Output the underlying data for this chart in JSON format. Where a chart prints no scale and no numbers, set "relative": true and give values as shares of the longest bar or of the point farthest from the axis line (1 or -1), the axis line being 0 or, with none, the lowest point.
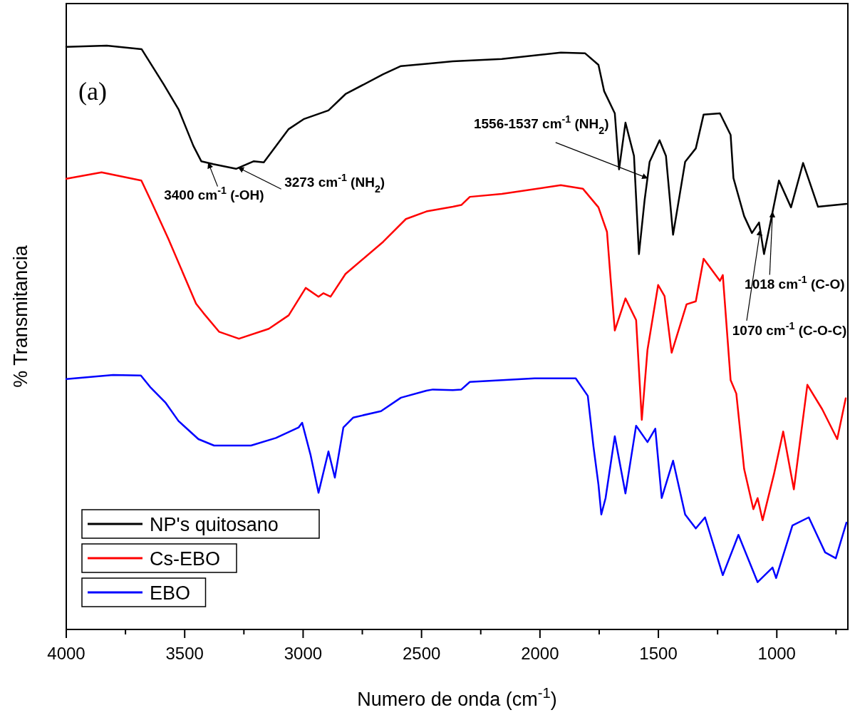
{
  "chart_data": {
    "type": "line",
    "relative": true,
    "xlabel": "Numero de onda (cm$^{-1}$)",
    "ylabel": "% Transmitancia",
    "xlim": [
      4000,
      700
    ],
    "xticks": [
      4000,
      {
        "value": 3750,
        "label": null
      },
      3500,
      {
        "value": 3250,
        "label": null
      },
      3000,
      {
        "value": 2750,
        "label": null
      },
      2500,
      {
        "value": 2250,
        "label": null
      },
      2000,
      {
        "value": 1750,
        "label": null
      },
      1500,
      {
        "value": 1250,
        "label": null
      },
      1000,
      {
        "value": 750,
        "label": null
      }
    ],
    "legend": "bottom left",
    "grid": false,
    "annotations": [
      "(a)",
      {
        "text": "3400 cm$^{-1}$ (-OH)",
        "x": 3400,
        "y": 0.799
      },
      {
        "text": "3273 cm$^{-1}$ (NH$_{2}$)",
        "x": 3273,
        "y": 0.791
      },
      {
        "text": "1556-1537 cm$^{-1}$ (NH$_{2}$)",
        "x": 1546,
        "y": 0.773
      },
      {
        "text": "1018 cm$^{-1}$ (C-O)",
        "x": 1018,
        "y": 0.715
      },
      {
        "text": "1070 cm$^{-1}$ (C-O-C)",
        "x": 1070,
        "y": 0.684
      }
    ],
    "series": [
      {
        "name": "NP's quitosano",
        "color": "#000000",
        "x": [
          4000,
          3829,
          3682,
          3589,
          3526,
          3463,
          3430,
          3379,
          3283,
          3208,
          3166,
          3061,
          2998,
          2893,
          2821,
          2662,
          2587,
          2479,
          2368,
          2161,
          1912,
          1810,
          1753,
          1729,
          1684,
          1666,
          1639,
          1603,
          1582,
          1558,
          1537,
          1495,
          1468,
          1438,
          1387,
          1342,
          1309,
          1240,
          1195,
          1183,
          1138,
          1105,
          1075,
          1054,
          991,
          940,
          889,
          826,
          706
        ],
        "values": [
          0.998,
          1,
          0.994,
          0.934,
          0.891,
          0.828,
          0.802,
          0.797,
          0.789,
          0.802,
          0.8,
          0.857,
          0.874,
          0.889,
          0.917,
          0.951,
          0.965,
          0.969,
          0.973,
          0.977,
          0.988,
          0.987,
          0.967,
          0.922,
          0.884,
          0.788,
          0.868,
          0.811,
          0.643,
          0.736,
          0.801,
          0.838,
          0.811,
          0.676,
          0.801,
          0.824,
          0.882,
          0.884,
          0.847,
          0.773,
          0.708,
          0.679,
          0.697,
          0.643,
          0.769,
          0.723,
          0.799,
          0.724,
          0.729
        ]
      },
      {
        "name": "Cs-EBO",
        "color": "#ff0000",
        "x": [
          4000,
          3851,
          3683,
          3641,
          3569,
          3452,
          3421,
          3355,
          3271,
          3145,
          3061,
          2989,
          2935,
          2914,
          2884,
          2821,
          2662,
          2566,
          2479,
          2368,
          2332,
          2296,
          2161,
          1912,
          1819,
          1753,
          1717,
          1702,
          1684,
          1639,
          1594,
          1570,
          1546,
          1501,
          1474,
          1444,
          1381,
          1342,
          1309,
          1240,
          1228,
          1195,
          1171,
          1138,
          1099,
          1081,
          1060,
          1012,
          973,
          928,
          871,
          808,
          745,
          709
        ],
        "values": [
          0.772,
          0.783,
          0.769,
          0.733,
          0.669,
          0.558,
          0.542,
          0.51,
          0.498,
          0.515,
          0.538,
          0.585,
          0.57,
          0.576,
          0.57,
          0.609,
          0.664,
          0.703,
          0.716,
          0.724,
          0.727,
          0.741,
          0.746,
          0.761,
          0.755,
          0.723,
          0.681,
          0.602,
          0.512,
          0.567,
          0.53,
          0.359,
          0.479,
          0.59,
          0.571,
          0.474,
          0.557,
          0.562,
          0.635,
          0.597,
          0.607,
          0.427,
          0.404,
          0.275,
          0.206,
          0.225,
          0.187,
          0.266,
          0.339,
          0.24,
          0.419,
          0.377,
          0.326,
          0.396
        ]
      },
      {
        "name": "EBO",
        "color": "#0000ff",
        "x": [
          4000,
          3802,
          3685,
          3643,
          3580,
          3526,
          3442,
          3376,
          3220,
          3115,
          3019,
          3004,
          2968,
          2935,
          2893,
          2866,
          2830,
          2788,
          2671,
          2587,
          2479,
          2452,
          2368,
          2332,
          2296,
          2023,
          1849,
          1798,
          1774,
          1753,
          1741,
          1723,
          1684,
          1639,
          1594,
          1546,
          1513,
          1486,
          1438,
          1387,
          1342,
          1303,
          1228,
          1162,
          1081,
          1018,
          1003,
          934,
          865,
          796,
          751,
          706
        ],
        "values": [
          0.429,
          0.436,
          0.435,
          0.414,
          0.388,
          0.357,
          0.326,
          0.315,
          0.315,
          0.328,
          0.346,
          0.354,
          0.298,
          0.234,
          0.305,
          0.26,
          0.346,
          0.363,
          0.374,
          0.397,
          0.409,
          0.411,
          0.41,
          0.411,
          0.424,
          0.43,
          0.43,
          0.4,
          0.313,
          0.248,
          0.197,
          0.225,
          0.331,
          0.233,
          0.349,
          0.321,
          0.344,
          0.225,
          0.289,
          0.197,
          0.173,
          0.192,
          0.093,
          0.162,
          0.081,
          0.106,
          0.088,
          0.178,
          0.192,
          0.132,
          0.122,
          0.183
        ]
      }
    ]
  }
}
